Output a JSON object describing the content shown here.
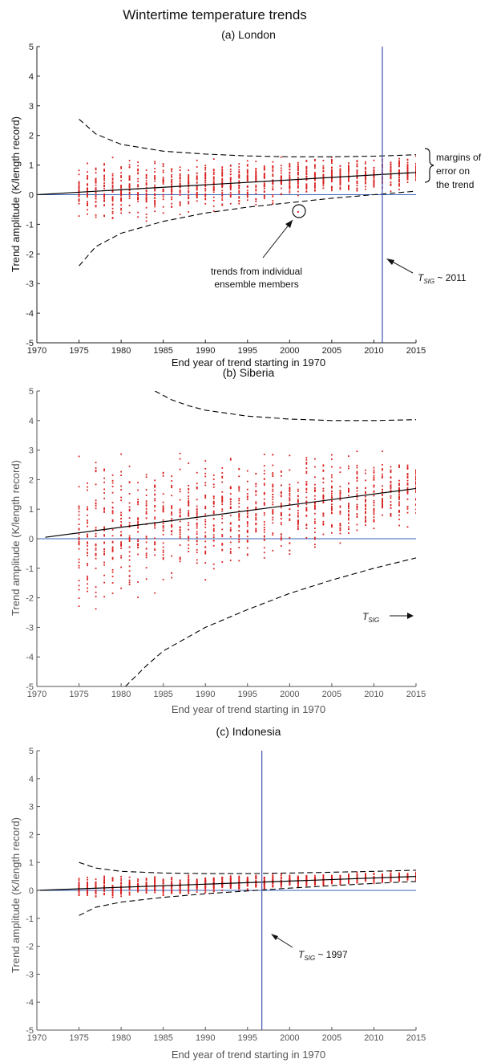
{
  "figure": {
    "title": "Wintertime temperature trends"
  },
  "chart_data": [
    {
      "type": "scatter",
      "title": "(a) London",
      "xlabel": "End year of trend starting in 1970",
      "ylabel": "Trend amplitude (K/length record)",
      "xlim": [
        1970,
        2015
      ],
      "ylim": [
        -5,
        5
      ],
      "xticks": [
        1970,
        1975,
        1980,
        1985,
        1990,
        1995,
        2000,
        2005,
        2010,
        2015
      ],
      "yticks": [
        -5,
        -4,
        -3,
        -2,
        -1,
        0,
        1,
        2,
        3,
        4,
        5
      ],
      "mean_trend": {
        "x": [
          1970,
          2015
        ],
        "y": [
          0,
          0.75
        ]
      },
      "margin_upper": {
        "x": [
          1975,
          1977,
          1980,
          1985,
          1990,
          1995,
          2000,
          2005,
          2010,
          2015
        ],
        "y": [
          2.55,
          2.05,
          1.7,
          1.47,
          1.37,
          1.31,
          1.28,
          1.28,
          1.3,
          1.35
        ]
      },
      "margin_lower": {
        "x": [
          1975,
          1977,
          1980,
          1985,
          1990,
          1995,
          2000,
          2005,
          2010,
          2015
        ],
        "y": [
          -2.4,
          -1.75,
          -1.3,
          -0.9,
          -0.62,
          -0.42,
          -0.27,
          -0.12,
          0.0,
          0.12
        ]
      },
      "members": {
        "start_x": 1975,
        "end_x": 2015,
        "spread_start": 1.3,
        "spread_end": 0.65
      },
      "tsig": {
        "x": 2011,
        "label_prefix": "T",
        "label_sub": "SIG",
        "label_suffix": " ~ 2011"
      },
      "annotations": {
        "margins_line1": "margins of",
        "margins_line2": "error on",
        "margins_line3": "the trend",
        "members_line1": "trends from individual",
        "members_line2": "ensemble members"
      },
      "highlight_point": {
        "x": 2001,
        "y": -0.58
      }
    },
    {
      "type": "scatter",
      "title": "(b) Siberia",
      "xlabel": "End year of trend starting in 1970",
      "ylabel": "Trend amplitude (K/length record)",
      "xlim": [
        1970,
        2015
      ],
      "ylim": [
        -5,
        5
      ],
      "xticks": [
        1970,
        1975,
        1980,
        1985,
        1990,
        1995,
        2000,
        2005,
        2010,
        2015
      ],
      "yticks": [
        -5,
        -4,
        -3,
        -2,
        -1,
        0,
        1,
        2,
        3,
        4,
        5
      ],
      "mean_trend": {
        "x": [
          1971,
          2015
        ],
        "y": [
          0.05,
          1.7
        ]
      },
      "margin_upper": {
        "x": [
          1984,
          1986,
          1988,
          1990,
          1995,
          2000,
          2005,
          2010,
          2015
        ],
        "y": [
          5.0,
          4.7,
          4.5,
          4.35,
          4.15,
          4.05,
          4.0,
          4.0,
          4.03
        ]
      },
      "margin_lower": {
        "x": [
          1980.5,
          1983,
          1985,
          1990,
          1995,
          2000,
          2005,
          2010,
          2015
        ],
        "y": [
          -5.0,
          -4.3,
          -3.8,
          -3.0,
          -2.4,
          -1.85,
          -1.4,
          -1.0,
          -0.65
        ]
      },
      "members": {
        "start_x": 1975,
        "end_x": 2015,
        "spread_start": 3.2,
        "spread_end": 1.5
      },
      "tsig": {
        "label_prefix": "T",
        "label_sub": "SIG",
        "label_suffix": ""
      }
    },
    {
      "type": "scatter",
      "title": "(c) Indonesia",
      "xlabel": "End year of trend starting in 1970",
      "ylabel": "Trend amplitude (K/length record)",
      "xlim": [
        1970,
        2015
      ],
      "ylim": [
        -5,
        5
      ],
      "xticks": [
        1970,
        1975,
        1980,
        1985,
        1990,
        1995,
        2000,
        2005,
        2010,
        2015
      ],
      "yticks": [
        -5,
        -4,
        -3,
        -2,
        -1,
        0,
        1,
        2,
        3,
        4,
        5
      ],
      "mean_trend": {
        "x": [
          1970,
          2015
        ],
        "y": [
          0,
          0.5
        ]
      },
      "margin_upper": {
        "x": [
          1975,
          1977,
          1980,
          1985,
          1990,
          1995,
          2000,
          2005,
          2010,
          2015
        ],
        "y": [
          1.0,
          0.8,
          0.68,
          0.62,
          0.6,
          0.6,
          0.62,
          0.65,
          0.68,
          0.72
        ]
      },
      "margin_lower": {
        "x": [
          1975,
          1977,
          1980,
          1985,
          1990,
          1995,
          2000,
          2005,
          2010,
          2015
        ],
        "y": [
          -0.9,
          -0.6,
          -0.42,
          -0.25,
          -0.12,
          -0.02,
          0.08,
          0.17,
          0.25,
          0.32
        ]
      },
      "members": {
        "start_x": 1975,
        "end_x": 2015,
        "spread_start": 0.5,
        "spread_end": 0.22
      },
      "tsig": {
        "x": 1996.7,
        "label_prefix": "T",
        "label_sub": "SIG",
        "label_suffix": " ~ 1997"
      }
    }
  ],
  "colors": {
    "points": "#d92020",
    "zero_line": "#3a63b5",
    "tsig_line": "#4f5fb8",
    "trend_line": "#000000",
    "axis": "#333333",
    "panel_b_text": "#555555"
  }
}
